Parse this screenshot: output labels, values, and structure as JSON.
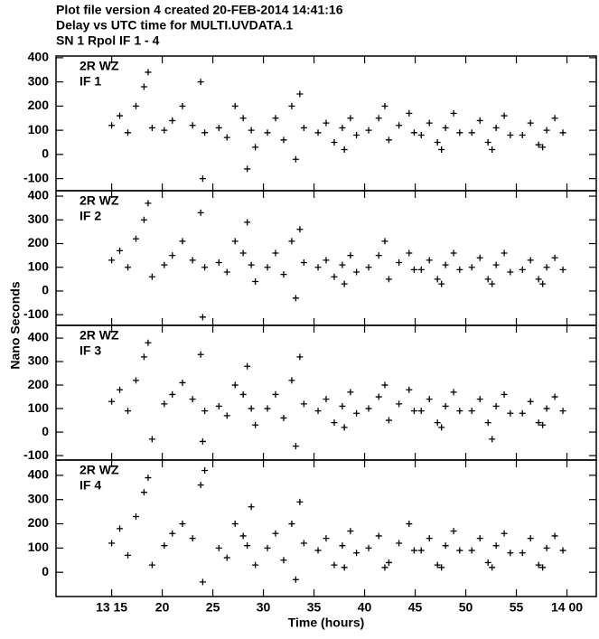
{
  "title_lines": [
    "Plot file version 4  created 20-FEB-2014 14:41:16",
    "Delay vs UTC time for MULTI.UVDATA.1",
    "SN 1  Rpol  IF 1 - 4"
  ],
  "y_label": "Nano Seconds",
  "x_label": "Time (hours)",
  "chart_data": [
    {
      "type": "scatter",
      "labels": [
        "2R WZ",
        "IF 1"
      ],
      "color": "#000000",
      "xlim": [
        9.5,
        62.9
      ],
      "ylim": [
        -150,
        407
      ],
      "yticks": [
        -100,
        0,
        100,
        200,
        300,
        400
      ],
      "x": [
        15.0,
        15.8,
        16.6,
        17.4,
        18.2,
        18.6,
        19.0,
        20.2,
        21.0,
        22.0,
        23.0,
        23.8,
        24.2,
        24.0,
        25.6,
        26.4,
        27.2,
        28.0,
        28.8,
        29.2,
        28.4,
        30.4,
        31.2,
        32.0,
        32.8,
        33.6,
        34.0,
        33.2,
        35.4,
        36.2,
        37.0,
        37.8,
        38.6,
        39.2,
        38.0,
        40.4,
        41.4,
        42.4,
        43.4,
        44.4,
        44.9,
        42.0,
        45.6,
        46.4,
        47.2,
        48.0,
        48.8,
        49.4,
        47.6,
        50.6,
        51.4,
        52.2,
        53.0,
        53.8,
        54.4,
        52.6,
        55.6,
        56.4,
        57.2,
        58.0,
        58.8,
        59.6,
        57.6
      ],
      "values": [
        120,
        160,
        90,
        200,
        280,
        340,
        110,
        100,
        140,
        200,
        120,
        300,
        90,
        -100,
        110,
        70,
        200,
        150,
        100,
        30,
        -60,
        90,
        150,
        60,
        200,
        250,
        110,
        -20,
        90,
        130,
        50,
        110,
        150,
        80,
        20,
        100,
        150,
        60,
        120,
        170,
        90,
        200,
        80,
        130,
        50,
        110,
        170,
        90,
        20,
        90,
        140,
        50,
        110,
        160,
        80,
        20,
        80,
        130,
        40,
        100,
        150,
        90,
        30
      ]
    },
    {
      "type": "scatter",
      "labels": [
        "2R WZ",
        "IF 2"
      ],
      "color": "#000000",
      "xlim": [
        9.5,
        62.9
      ],
      "ylim": [
        -145,
        423
      ],
      "yticks": [
        -100,
        0,
        100,
        200,
        300,
        400
      ],
      "x": [
        15.0,
        15.8,
        16.6,
        17.4,
        18.2,
        18.6,
        19.0,
        20.2,
        21.0,
        22.0,
        23.0,
        23.8,
        24.2,
        24.0,
        25.6,
        26.4,
        27.2,
        28.0,
        28.8,
        29.2,
        28.4,
        30.4,
        31.2,
        32.0,
        32.8,
        33.6,
        34.0,
        33.2,
        35.4,
        36.2,
        37.0,
        37.8,
        38.6,
        39.2,
        38.0,
        40.4,
        41.4,
        42.4,
        43.4,
        44.4,
        44.9,
        42.0,
        45.6,
        46.4,
        47.2,
        48.0,
        48.8,
        49.4,
        47.6,
        50.6,
        51.4,
        52.2,
        53.0,
        53.8,
        54.4,
        52.6,
        55.6,
        56.4,
        57.2,
        58.0,
        58.8,
        59.6,
        57.6
      ],
      "values": [
        130,
        170,
        100,
        220,
        300,
        370,
        60,
        110,
        150,
        210,
        130,
        330,
        100,
        -110,
        120,
        80,
        210,
        160,
        110,
        40,
        290,
        100,
        160,
        70,
        210,
        260,
        120,
        -30,
        100,
        130,
        60,
        110,
        150,
        80,
        30,
        100,
        150,
        50,
        120,
        160,
        90,
        210,
        90,
        130,
        50,
        110,
        160,
        90,
        30,
        100,
        140,
        50,
        110,
        160,
        80,
        30,
        90,
        130,
        50,
        100,
        140,
        90,
        30
      ]
    },
    {
      "type": "scatter",
      "labels": [
        "2R WZ",
        "IF 3"
      ],
      "color": "#000000",
      "xlim": [
        9.5,
        62.9
      ],
      "ylim": [
        -119,
        454
      ],
      "yticks": [
        -100,
        0,
        100,
        200,
        300,
        400
      ],
      "x": [
        15.0,
        15.8,
        16.6,
        17.4,
        18.2,
        18.6,
        19.0,
        20.2,
        21.0,
        22.0,
        23.0,
        23.8,
        24.2,
        24.0,
        25.6,
        26.4,
        27.2,
        28.0,
        28.8,
        29.2,
        28.4,
        30.4,
        31.2,
        32.0,
        32.8,
        33.6,
        34.0,
        33.2,
        35.4,
        36.2,
        37.0,
        37.8,
        38.6,
        39.2,
        38.0,
        40.4,
        41.4,
        42.4,
        43.4,
        44.4,
        44.9,
        42.0,
        45.6,
        46.4,
        47.2,
        48.0,
        48.8,
        49.4,
        47.6,
        50.6,
        51.4,
        52.2,
        53.0,
        53.8,
        54.4,
        52.6,
        55.6,
        56.4,
        57.2,
        58.0,
        58.8,
        59.6,
        57.6
      ],
      "values": [
        130,
        180,
        90,
        220,
        320,
        380,
        -30,
        120,
        160,
        210,
        140,
        330,
        90,
        -40,
        110,
        70,
        200,
        160,
        100,
        30,
        280,
        100,
        160,
        60,
        220,
        320,
        120,
        -60,
        90,
        140,
        40,
        110,
        170,
        80,
        20,
        100,
        150,
        50,
        120,
        180,
        90,
        200,
        90,
        140,
        40,
        110,
        170,
        90,
        20,
        90,
        140,
        40,
        110,
        160,
        80,
        -30,
        80,
        130,
        40,
        100,
        150,
        90,
        30
      ]
    },
    {
      "type": "scatter",
      "labels": [
        "2R WZ",
        "IF 4"
      ],
      "color": "#000000",
      "xlim": [
        9.5,
        62.9
      ],
      "ylim": [
        -100,
        463
      ],
      "yticks": [
        0,
        100,
        200,
        300,
        400
      ],
      "xticks": [
        {
          "value": 15,
          "label": "13 15"
        },
        20,
        25,
        30,
        35,
        40,
        45,
        50,
        55,
        {
          "value": 60,
          "label": "14 00"
        }
      ],
      "x": [
        15.0,
        15.8,
        16.6,
        17.4,
        18.2,
        18.6,
        19.0,
        20.2,
        21.0,
        22.0,
        23.0,
        23.8,
        24.2,
        24.0,
        25.6,
        26.4,
        27.2,
        28.0,
        28.8,
        29.2,
        28.4,
        30.4,
        31.2,
        32.0,
        32.8,
        33.6,
        34.0,
        33.2,
        35.4,
        36.2,
        37.0,
        37.8,
        38.6,
        39.2,
        38.0,
        40.4,
        41.4,
        42.4,
        43.4,
        44.4,
        44.9,
        42.0,
        45.6,
        46.4,
        47.2,
        48.0,
        48.8,
        49.4,
        47.6,
        50.6,
        51.4,
        52.2,
        53.0,
        53.8,
        54.4,
        52.6,
        55.6,
        56.4,
        57.2,
        58.0,
        58.8,
        59.6,
        57.6
      ],
      "values": [
        120,
        180,
        70,
        230,
        330,
        390,
        30,
        110,
        160,
        200,
        140,
        360,
        420,
        -40,
        100,
        60,
        200,
        150,
        270,
        30,
        110,
        100,
        160,
        50,
        200,
        290,
        120,
        -30,
        90,
        140,
        30,
        110,
        170,
        80,
        20,
        100,
        150,
        40,
        120,
        200,
        90,
        20,
        90,
        140,
        30,
        110,
        170,
        90,
        20,
        90,
        140,
        40,
        110,
        160,
        80,
        20,
        80,
        140,
        30,
        100,
        150,
        90,
        20
      ]
    }
  ]
}
